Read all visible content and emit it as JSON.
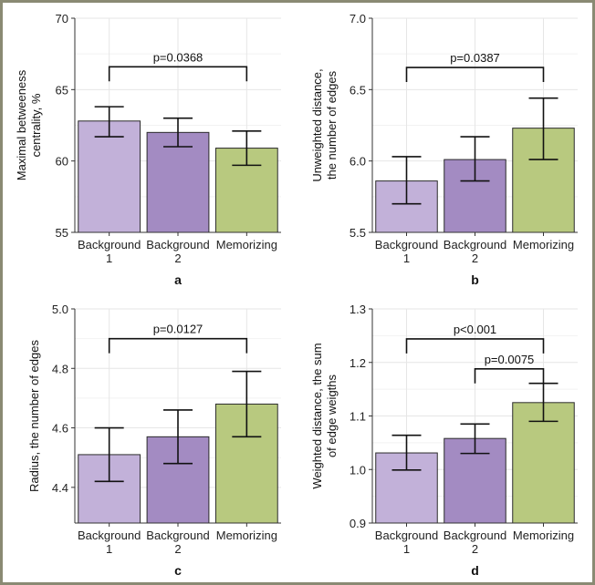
{
  "colors": {
    "frame": "#8a8a73",
    "grid": "#e6e6e6",
    "bar_fills": [
      "#c2b1d9",
      "#a38bc2",
      "#b8c97f"
    ],
    "bar_stroke": "#2b2b2b"
  },
  "chart_data": [
    {
      "type": "bar",
      "panel_label": "a",
      "categories": [
        [
          "Background",
          "1"
        ],
        [
          "Background",
          "2"
        ],
        [
          "Memorizing"
        ]
      ],
      "values": [
        62.8,
        62.0,
        60.9
      ],
      "error_low": [
        61.7,
        61.0,
        59.7
      ],
      "error_high": [
        63.8,
        63.0,
        62.1
      ],
      "ylabel": [
        "Maximal betweeness",
        "centrality, %"
      ],
      "ylim": [
        55,
        70
      ],
      "yticks": [
        55,
        60,
        65,
        70
      ],
      "ytick_labels": [
        "55",
        "60",
        "65",
        "70"
      ],
      "grid": true,
      "significance": [
        {
          "from": 0,
          "to": 2,
          "label": "p=0.0368",
          "y": 66.6
        }
      ]
    },
    {
      "type": "bar",
      "panel_label": "b",
      "categories": [
        [
          "Background",
          "1"
        ],
        [
          "Background",
          "2"
        ],
        [
          "Memorizing"
        ]
      ],
      "values": [
        5.86,
        6.01,
        6.23
      ],
      "error_low": [
        5.7,
        5.86,
        6.01
      ],
      "error_high": [
        6.03,
        6.17,
        6.44
      ],
      "ylabel": [
        "Unweighted distance,",
        "the number of edges"
      ],
      "ylim": [
        5.5,
        7.0
      ],
      "yticks": [
        5.5,
        6.0,
        6.5,
        7.0
      ],
      "ytick_labels": [
        "5.5",
        "6.0",
        "6.5",
        "7.0"
      ],
      "grid": true,
      "significance": [
        {
          "from": 0,
          "to": 2,
          "label": "p=0.0387",
          "y": 6.655
        }
      ]
    },
    {
      "type": "bar",
      "panel_label": "c",
      "categories": [
        [
          "Background",
          "1"
        ],
        [
          "Background",
          "2"
        ],
        [
          "Memorizing"
        ]
      ],
      "values": [
        4.51,
        4.57,
        4.68
      ],
      "error_low": [
        4.42,
        4.48,
        4.57
      ],
      "error_high": [
        4.6,
        4.66,
        4.79
      ],
      "ylabel": [
        "Radius, the number of edges"
      ],
      "ylim": [
        4.28,
        5.0
      ],
      "yticks": [
        4.4,
        4.6,
        4.8,
        5.0
      ],
      "ytick_labels": [
        "4.4",
        "4.6",
        "4.8",
        "5.0"
      ],
      "grid": true,
      "significance": [
        {
          "from": 0,
          "to": 2,
          "label": "p=0.0127",
          "y": 4.9
        }
      ]
    },
    {
      "type": "bar",
      "panel_label": "d",
      "categories": [
        [
          "Background",
          "1"
        ],
        [
          "Background",
          "2"
        ],
        [
          "Memorizing"
        ]
      ],
      "values": [
        1.031,
        1.058,
        1.125
      ],
      "error_low": [
        0.999,
        1.03,
        1.09
      ],
      "error_high": [
        1.064,
        1.085,
        1.161
      ],
      "ylabel": [
        "Weighted distance, the sum",
        "of edge weigths"
      ],
      "ylim": [
        0.9,
        1.3
      ],
      "yticks": [
        0.9,
        1.0,
        1.1,
        1.2,
        1.3
      ],
      "ytick_labels": [
        "0.9",
        "1.0",
        "1.1",
        "1.2",
        "1.3"
      ],
      "grid": true,
      "significance": [
        {
          "from": 0,
          "to": 2,
          "label": "p<0.001",
          "y": 1.244
        },
        {
          "from": 1,
          "to": 2,
          "label": "p=0.0075",
          "y": 1.188
        }
      ]
    }
  ]
}
